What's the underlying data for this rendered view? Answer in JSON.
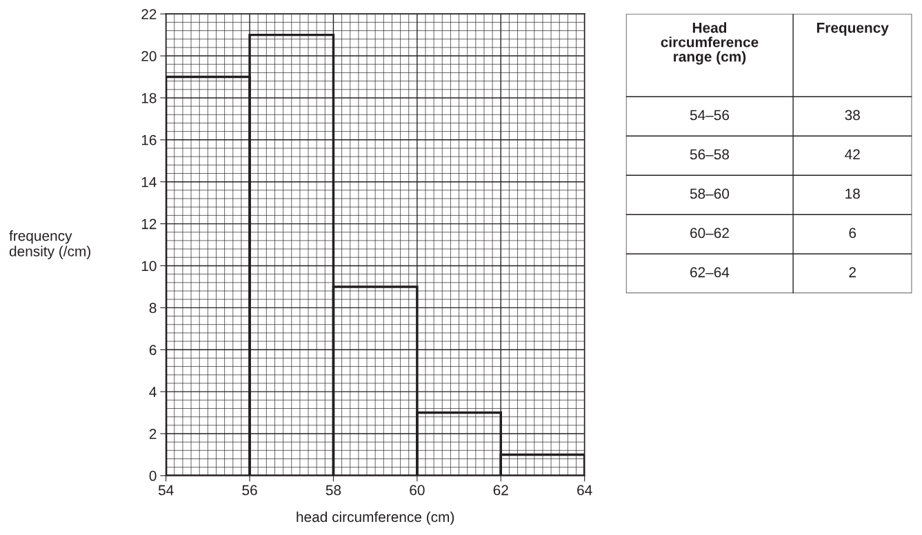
{
  "chart_data": [
    {
      "type": "histogram",
      "xlabel": "head circumference (cm)",
      "ylabel": "frequency\ndensity (/cm)",
      "bins": [
        54,
        56,
        58,
        60,
        62,
        64
      ],
      "values": [
        19,
        21,
        9,
        3,
        1
      ],
      "color": "#231f20",
      "xlim": [
        54,
        64
      ],
      "ylim": [
        0,
        22
      ],
      "xticks": [
        54,
        56,
        58,
        60,
        62,
        64
      ],
      "yticks": [
        0,
        2,
        4,
        6,
        8,
        10,
        12,
        14,
        16,
        18,
        20,
        22
      ],
      "grid": true
    },
    {
      "type": "other",
      "xlabel": "Head circumference range (cm)",
      "ylabel": "Frequency",
      "categories": [
        "54–56",
        "56–58",
        "58–60",
        "60–62",
        "62–64"
      ],
      "values": [
        38,
        42,
        18,
        6,
        2
      ],
      "data_labels": true
    }
  ]
}
